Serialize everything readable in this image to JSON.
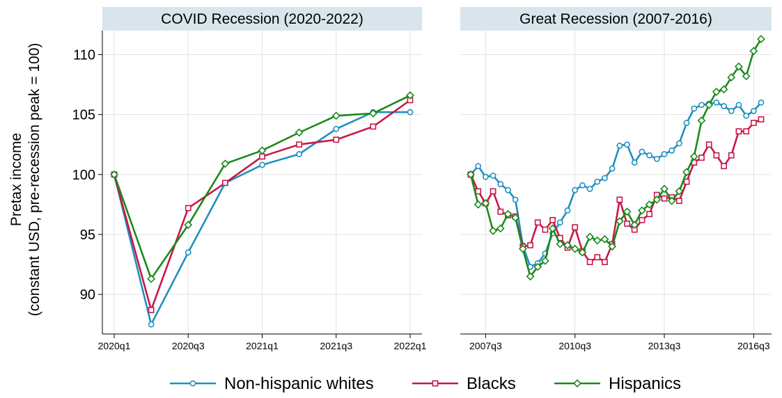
{
  "figure": {
    "ylabel_line1": "Pretax income",
    "ylabel_line2": "(constant USD, pre-recession peak = 100)"
  },
  "legend": [
    {
      "name": "Non-hispanic whites",
      "color": "#1f8fbf",
      "marker": "circle"
    },
    {
      "name": "Blacks",
      "color": "#c8174a",
      "marker": "square"
    },
    {
      "name": "Hispanics",
      "color": "#1a8a1a",
      "marker": "diamond"
    }
  ],
  "chart_data": [
    {
      "type": "line",
      "title": "COVID Recession (2020-2022)",
      "xlabel": "",
      "ylabel": "Pretax income (constant USD, pre-recession peak = 100)",
      "x_ticks": [
        "2020q1",
        "2020q3",
        "2021q1",
        "2021q3",
        "2022q1"
      ],
      "x_tick_index": [
        0,
        2,
        4,
        6,
        8
      ],
      "ylim": [
        86.7,
        112
      ],
      "y_ticks": [
        90,
        95,
        100,
        105,
        110
      ],
      "grid": true,
      "series": [
        {
          "name": "Non-hispanic whites",
          "values": [
            100,
            87.5,
            93.5,
            99.3,
            100.8,
            101.7,
            103.8,
            105.2,
            105.2
          ]
        },
        {
          "name": "Blacks",
          "values": [
            100,
            88.7,
            97.2,
            99.3,
            101.5,
            102.5,
            102.9,
            104.0,
            106.2
          ]
        },
        {
          "name": "Hispanics",
          "values": [
            100,
            91.3,
            95.8,
            100.9,
            102.0,
            103.5,
            104.9,
            105.1,
            106.6
          ]
        }
      ]
    },
    {
      "type": "line",
      "title": "Great Recession (2007-2016)",
      "xlabel": "",
      "ylabel": "",
      "x_ticks": [
        "2007q3",
        "2010q3",
        "2013q3",
        "2016q3"
      ],
      "x_tick_index": [
        2,
        14,
        26,
        38
      ],
      "ylim": [
        86.7,
        112
      ],
      "y_ticks": [
        90,
        95,
        100,
        105,
        110
      ],
      "grid": true,
      "series": [
        {
          "name": "Non-hispanic whites",
          "values": [
            100,
            100.7,
            99.8,
            99.9,
            99.2,
            98.7,
            97.9,
            94.1,
            92.3,
            92.6,
            93.4,
            95.1,
            96.0,
            97.0,
            98.7,
            99.1,
            98.8,
            99.4,
            99.7,
            100.5,
            102.4,
            102.5,
            101.0,
            101.9,
            101.6,
            101.3,
            101.7,
            102.0,
            102.6,
            104.3,
            105.5,
            105.8,
            105.9,
            106.0,
            105.7,
            105.3,
            105.8,
            104.9,
            105.3,
            106.0
          ]
        },
        {
          "name": "Blacks",
          "values": [
            100,
            98.6,
            97.6,
            98.6,
            96.9,
            96.6,
            96.5,
            94.0,
            94.1,
            96.0,
            95.4,
            96.2,
            94.7,
            93.9,
            95.6,
            93.6,
            92.7,
            93.1,
            92.7,
            94.2,
            97.9,
            95.9,
            95.4,
            96.2,
            96.7,
            98.3,
            98.0,
            98.1,
            97.8,
            99.4,
            101.0,
            101.4,
            102.5,
            101.6,
            100.7,
            101.6,
            103.6,
            103.6,
            104.3,
            104.6
          ]
        },
        {
          "name": "Hispanics",
          "values": [
            100,
            97.5,
            97.6,
            95.3,
            95.5,
            96.7,
            96.4,
            93.8,
            91.5,
            92.3,
            92.8,
            95.5,
            94.2,
            94.1,
            93.8,
            93.5,
            94.8,
            94.5,
            94.6,
            94.0,
            96.1,
            96.9,
            95.8,
            97.0,
            97.5,
            97.9,
            98.8,
            97.8,
            98.6,
            100.2,
            101.5,
            104.5,
            105.8,
            106.9,
            107.1,
            108.1,
            109.0,
            108.2,
            110.3,
            111.3
          ]
        }
      ]
    }
  ]
}
